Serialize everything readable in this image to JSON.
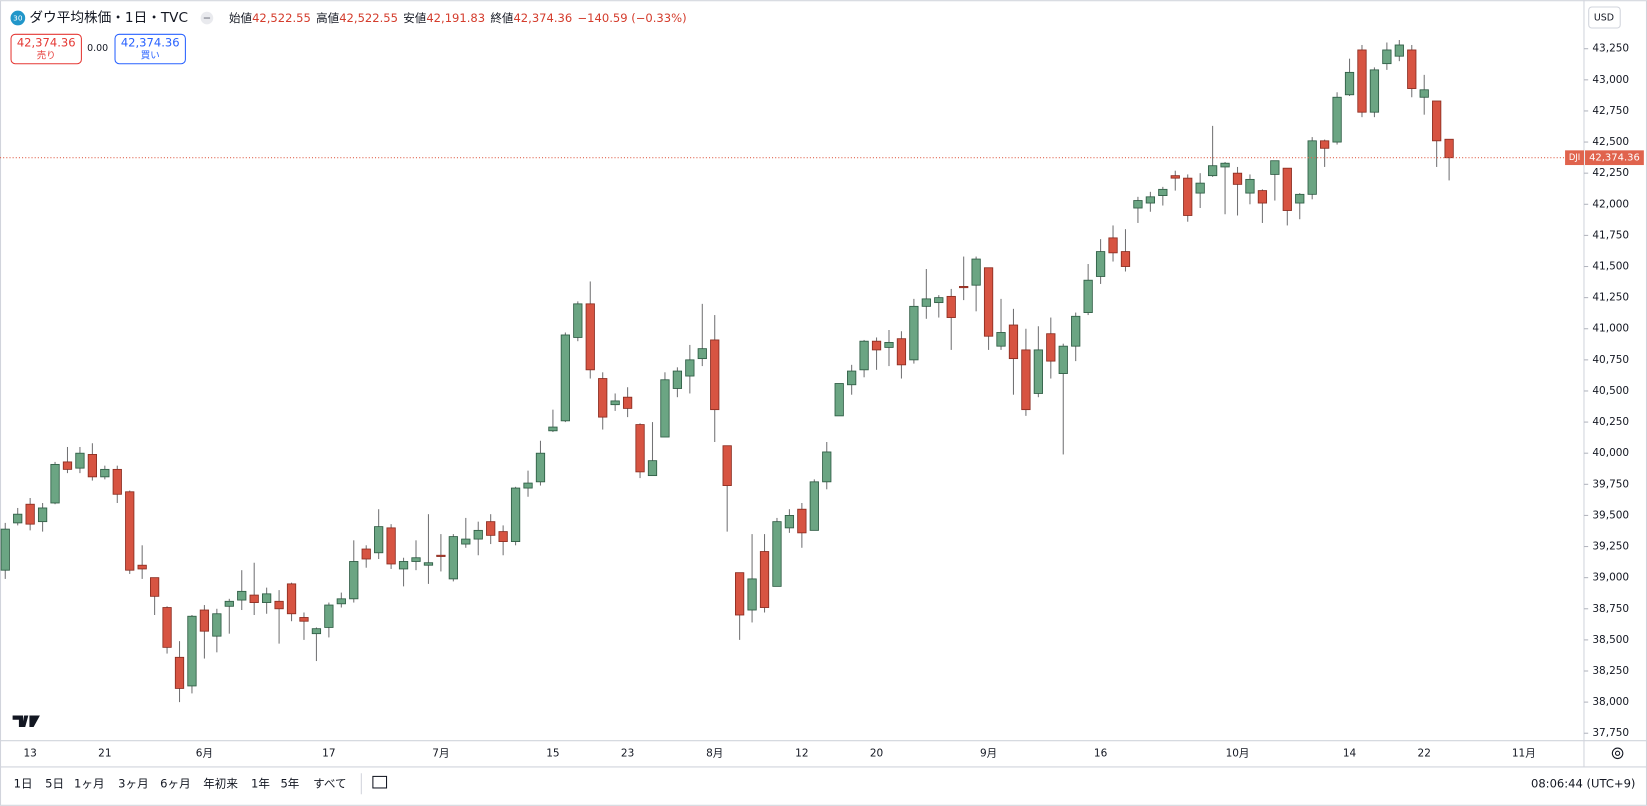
{
  "header": {
    "badge": "30",
    "symbol": "ダウ平均株価・1日・TVC",
    "open_label": "始値",
    "open": "42,522.55",
    "high_label": "高値",
    "high": "42,522.55",
    "low_label": "安値",
    "low": "42,191.83",
    "close_label": "終値",
    "close": "42,374.36",
    "change": "−140.59 (−0.33%)"
  },
  "trade": {
    "sell_price": "42,374.36",
    "sell_label": "売り",
    "spread": "0.00",
    "buy_price": "42,374.36",
    "buy_label": "買い"
  },
  "currency": "USD",
  "chart_data": {
    "type": "candlestick",
    "categories": [
      null,
      null,
      "13",
      null,
      null,
      null,
      null,
      null,
      "21",
      null,
      null,
      null,
      null,
      null,
      null,
      null,
      "6月",
      null,
      null,
      null,
      null,
      null,
      null,
      null,
      null,
      null,
      "17",
      null,
      null,
      null,
      null,
      null,
      null,
      null,
      null,
      "7月",
      null,
      null,
      null,
      null,
      null,
      null,
      null,
      null,
      "15",
      null,
      null,
      null,
      null,
      null,
      "23",
      null,
      null,
      null,
      null,
      null,
      null,
      "8月",
      null,
      null,
      null,
      null,
      null,
      null,
      "12",
      null,
      null,
      null,
      null,
      null,
      "20",
      null,
      null,
      null,
      null,
      null,
      null,
      null,
      null,
      "9月",
      null,
      null,
      null,
      null,
      null,
      null,
      null,
      null,
      "16",
      null,
      null,
      null,
      null,
      null,
      null,
      null,
      null,
      null,
      null,
      "10月",
      null,
      null,
      null,
      null,
      null,
      null,
      null,
      null,
      "14",
      null,
      null,
      null,
      null,
      null,
      "22",
      null,
      null,
      null,
      null,
      null,
      null,
      null,
      "11月"
    ],
    "open": [
      39060,
      39440,
      39590,
      39450,
      39600,
      39930,
      39880,
      39990,
      39810,
      39870,
      39690,
      39100,
      39000,
      38760,
      38360,
      38130,
      38740,
      38530,
      38770,
      38820,
      38860,
      38800,
      38810,
      38950,
      38680,
      38550,
      38600,
      38790,
      38830,
      39230,
      39200,
      39400,
      39070,
      39130,
      39100,
      39180,
      38990,
      39270,
      39310,
      39450,
      39370,
      39290,
      39720,
      39770,
      40180,
      40260,
      40930,
      41200,
      40600,
      40390,
      40450,
      40230,
      39820,
      40130,
      40520,
      40620,
      40760,
      40910,
      40060,
      39040,
      38740,
      39210,
      38930,
      39400,
      39550,
      39380,
      39770,
      40300,
      40550,
      40670,
      40900,
      40850,
      40920,
      40750,
      41180,
      41210,
      41260,
      41340,
      41350,
      41490,
      40860,
      41030,
      40830,
      40480,
      40960,
      40640,
      40860,
      41130,
      41420,
      41730,
      41620,
      41970,
      42010,
      42070,
      42230,
      42210,
      42090,
      42230,
      42300,
      42250,
      42090,
      42110,
      42240,
      42290,
      42010,
      42080,
      42510,
      42500,
      42880,
      43240,
      42740,
      43130,
      43190,
      43240,
      42860,
      42830,
      42522.55,
      null,
      null,
      null,
      null,
      null,
      null
    ],
    "high": [
      39440,
      39560,
      39640,
      39600,
      39930,
      40050,
      40050,
      40080,
      39900,
      39900,
      39700,
      39260,
      39000,
      38770,
      38490,
      38700,
      38780,
      38750,
      38830,
      39060,
      39120,
      38920,
      38900,
      38960,
      38720,
      38600,
      38800,
      38880,
      39300,
      39260,
      39550,
      39430,
      39160,
      39300,
      39510,
      39350,
      39350,
      39480,
      39450,
      39510,
      39420,
      39730,
      39860,
      40100,
      40350,
      40970,
      41220,
      41380,
      40650,
      40480,
      40530,
      40240,
      40250,
      40650,
      40690,
      40870,
      41200,
      41110,
      40060,
      39040,
      39350,
      39350,
      39480,
      39550,
      39600,
      39790,
      40090,
      40560,
      40710,
      40910,
      40930,
      40990,
      40980,
      41240,
      41480,
      41270,
      41320,
      41580,
      41580,
      41490,
      41240,
      41160,
      41000,
      41020,
      41090,
      40880,
      41130,
      41520,
      41720,
      41830,
      41800,
      42060,
      42100,
      42140,
      42270,
      42240,
      42250,
      42630,
      42340,
      42300,
      42240,
      42120,
      42350,
      42290,
      42090,
      42540,
      42520,
      42900,
      43170,
      43280,
      43100,
      43300,
      43320,
      43280,
      43040,
      42830,
      42522.55,
      null,
      null,
      null,
      null,
      null,
      null
    ],
    "low": [
      38990,
      39420,
      39380,
      39370,
      39590,
      39840,
      39840,
      39780,
      39790,
      39600,
      39030,
      38990,
      38700,
      38390,
      38000,
      38070,
      38350,
      38400,
      38550,
      38740,
      38700,
      38710,
      38470,
      38650,
      38500,
      38330,
      38520,
      38760,
      38800,
      39080,
      39150,
      39070,
      38930,
      39060,
      38950,
      39050,
      38970,
      39240,
      39180,
      39270,
      39180,
      39260,
      39650,
      39740,
      40170,
      40250,
      40900,
      40600,
      40190,
      40340,
      40290,
      39800,
      39820,
      40130,
      40450,
      40480,
      40700,
      40090,
      39370,
      38500,
      38640,
      38720,
      38930,
      39360,
      39240,
      39380,
      39710,
      40300,
      40470,
      40610,
      40670,
      40700,
      40600,
      40720,
      41080,
      41090,
      40830,
      41230,
      41140,
      40830,
      40830,
      40470,
      40300,
      40450,
      40600,
      39990,
      40740,
      41110,
      41360,
      41540,
      41460,
      41850,
      41940,
      41990,
      42110,
      41860,
      41970,
      42220,
      41920,
      41910,
      42000,
      41850,
      42030,
      41830,
      41880,
      42040,
      42300,
      42480,
      42870,
      42700,
      42700,
      43080,
      43150,
      42860,
      42720,
      42300,
      42191.83,
      null,
      null,
      null,
      null,
      null,
      null
    ],
    "close": [
      39390,
      39510,
      39430,
      39560,
      39910,
      39870,
      40000,
      39810,
      39870,
      39670,
      39060,
      39070,
      38850,
      38440,
      38110,
      38690,
      38570,
      38710,
      38810,
      38890,
      38800,
      38870,
      38750,
      38710,
      38650,
      38590,
      38780,
      38830,
      39130,
      39150,
      39410,
      39110,
      39130,
      39160,
      39120,
      39170,
      39330,
      39310,
      39380,
      39340,
      39290,
      39720,
      39760,
      40000,
      40210,
      40950,
      41200,
      40670,
      40290,
      40420,
      40360,
      39850,
      39940,
      40590,
      40660,
      40750,
      40840,
      40350,
      39740,
      38700,
      38990,
      38760,
      39450,
      39500,
      39360,
      39770,
      40010,
      40560,
      40660,
      40900,
      40830,
      40890,
      40710,
      41180,
      41240,
      41250,
      41090,
      41330,
      41560,
      40940,
      40970,
      40760,
      40350,
      40830,
      40740,
      40860,
      41100,
      41390,
      41620,
      41610,
      41500,
      42030,
      42060,
      42120,
      42210,
      41910,
      42170,
      42310,
      42330,
      42160,
      42200,
      42010,
      42350,
      41950,
      42080,
      42510,
      42450,
      42860,
      43060,
      42740,
      43080,
      43240,
      43280,
      42930,
      42920,
      42510,
      42374.36,
      null,
      null,
      null,
      null,
      null,
      null
    ],
    "up_color": "#6ba583",
    "down_color": "#d75442",
    "ylim": [
      37690,
      43640
    ],
    "yticks": [
      {
        "value": 37750,
        "label": "37,750"
      },
      {
        "value": 38000,
        "label": "38,000"
      },
      {
        "value": 38250,
        "label": "38,250"
      },
      {
        "value": 38500,
        "label": "38,500"
      },
      {
        "value": 38750,
        "label": "38,750"
      },
      {
        "value": 39000,
        "label": "39,000"
      },
      {
        "value": 39250,
        "label": "39,250"
      },
      {
        "value": 39500,
        "label": "39,500"
      },
      {
        "value": 39750,
        "label": "39,750"
      },
      {
        "value": 40000,
        "label": "40,000"
      },
      {
        "value": 40250,
        "label": "40,250"
      },
      {
        "value": 40500,
        "label": "40,500"
      },
      {
        "value": 40750,
        "label": "40,750"
      },
      {
        "value": 41000,
        "label": "41,000"
      },
      {
        "value": 41250,
        "label": "41,250"
      },
      {
        "value": 41500,
        "label": "41,500"
      },
      {
        "value": 41750,
        "label": "41,750"
      },
      {
        "value": 42000,
        "label": "42,000"
      },
      {
        "value": 42250,
        "label": "42,250"
      },
      {
        "value": 42500,
        "label": "42,500"
      },
      {
        "value": 42750,
        "label": "42,750"
      },
      {
        "value": 43000,
        "label": "43,000"
      },
      {
        "value": 43250,
        "label": "43,250"
      }
    ],
    "grid": false,
    "price_line": {
      "name": "DJI",
      "value": 42374.36,
      "label": "42,374.36",
      "color": "#e0634d"
    }
  },
  "footer": {
    "ranges": [
      "1日",
      "5日",
      "1ヶ月",
      "3ヶ月",
      "6ヶ月",
      "年初来",
      "1年",
      "5年",
      "すべて"
    ],
    "clock": "08:06:44 (UTC+9)"
  }
}
